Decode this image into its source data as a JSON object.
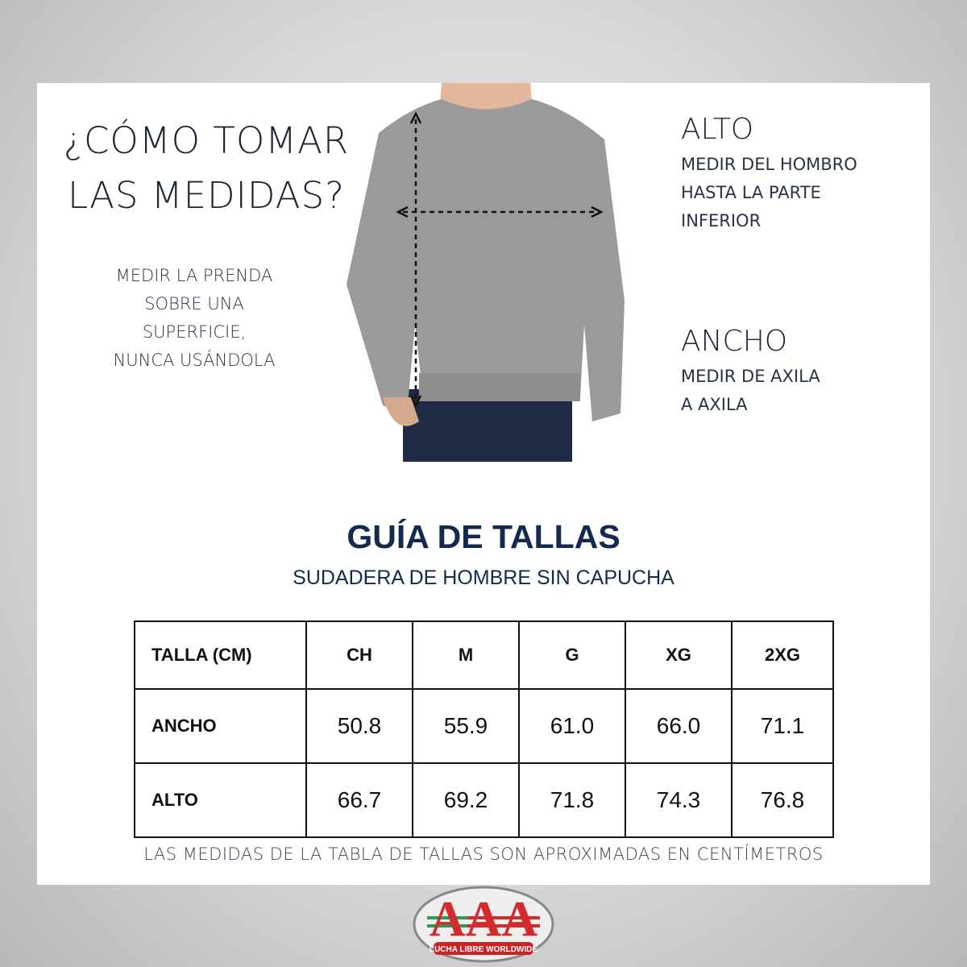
{
  "left_panel": {
    "heading_line1": "¿CÓMO TOMAR",
    "heading_line2": "LAS MEDIDAS?",
    "note_lines": [
      "MEDIR LA PRENDA",
      "SOBRE UNA",
      "SUPERFICIE,",
      "NUNCA USÁNDOLA"
    ]
  },
  "right_panel": {
    "alto": {
      "title": "ALTO",
      "lines": [
        "MEDIR DEL HOMBRO",
        "HASTA LA PARTE",
        "INFERIOR"
      ]
    },
    "ancho": {
      "title": "ANCHO",
      "lines": [
        "MEDIR DE AXILA",
        "A AXILA"
      ]
    }
  },
  "guide": {
    "title": "GUÍA DE TALLAS",
    "subtitle": "SUDADERA DE HOMBRE SIN CAPUCHA",
    "headers": [
      "TALLA (CM)",
      "CH",
      "M",
      "G",
      "XG",
      "2XG"
    ],
    "rows": [
      [
        "ANCHO",
        "50.8",
        "55.9",
        "61.0",
        "66.0",
        "71.1"
      ],
      [
        "ALTO",
        "66.7",
        "69.2",
        "71.8",
        "74.3",
        "76.8"
      ]
    ],
    "footnote": "LAS MEDIDAS DE LA TABLA DE TALLAS SON APROXIMADAS EN CENTÍMETROS"
  },
  "logo": {
    "text": "AAA",
    "tagline": "LUCHA LIBRE WORLDWIDE"
  },
  "colors": {
    "navy": "#142a4d",
    "sweater": "#9a9a9a",
    "logo_red": "#d42a2e",
    "logo_green": "#2e9b55"
  }
}
